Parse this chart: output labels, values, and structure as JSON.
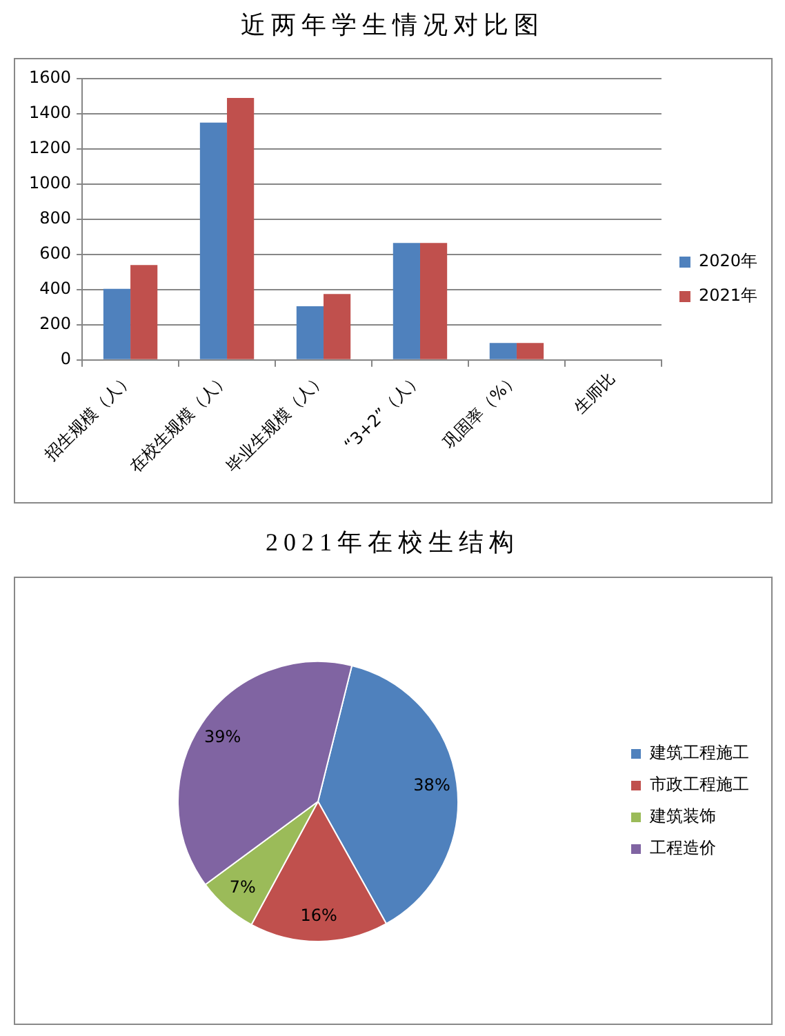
{
  "chart_data": [
    {
      "type": "bar",
      "title": "近两年学生情况对比图",
      "categories": [
        "招生规模（人）",
        "在校生规模（人）",
        "毕业生规模（人）",
        "“3+2”（人）",
        "巩固率（%）",
        "生师比"
      ],
      "series": [
        {
          "name": "2020年",
          "color": "#4f81bd",
          "values": [
            405,
            1350,
            305,
            665,
            97,
            null
          ]
        },
        {
          "name": "2021年",
          "color": "#c0504d",
          "values": [
            540,
            1490,
            375,
            665,
            97,
            null
          ]
        }
      ],
      "ylim": [
        0,
        1600
      ],
      "yticks": [
        0,
        200,
        400,
        600,
        800,
        1000,
        1200,
        1400,
        1600
      ],
      "grid": "y",
      "legend": "right"
    },
    {
      "type": "pie",
      "title": "2021年在校生结构",
      "categories": [
        "建筑工程施工",
        "市政工程施工",
        "建筑装饰",
        "工程造价"
      ],
      "values": [
        38,
        16,
        7,
        39
      ],
      "colors": [
        "#4f81bd",
        "#c0504d",
        "#9bbb59",
        "#8064a2"
      ],
      "value_labels": [
        "38%",
        "16%",
        "7%",
        "39%"
      ],
      "legend": "right"
    }
  ]
}
